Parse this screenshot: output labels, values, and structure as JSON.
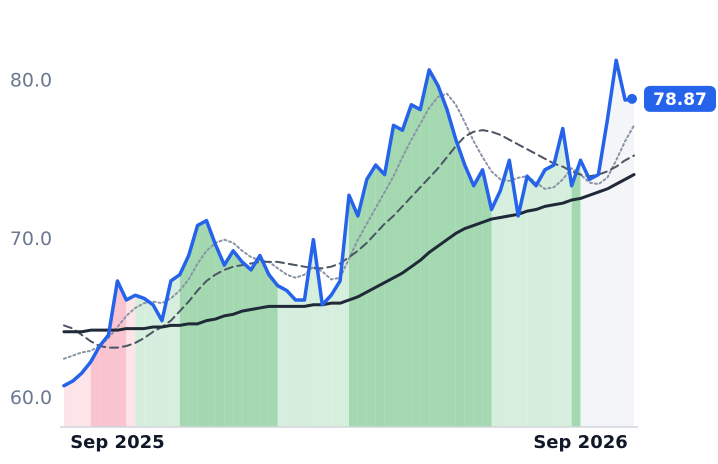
{
  "chart_data": {
    "type": "line",
    "categories": [
      null,
      null,
      null,
      null,
      null,
      null,
      "Sep 2025",
      null,
      null,
      null,
      null,
      null,
      null,
      null,
      null,
      null,
      null,
      null,
      null,
      null,
      null,
      null,
      null,
      null,
      null,
      null,
      null,
      null,
      null,
      null,
      null,
      null,
      null,
      null,
      null,
      null,
      null,
      null,
      null,
      null,
      null,
      null,
      null,
      null,
      null,
      null,
      null,
      null,
      null,
      null,
      null,
      null,
      null,
      null,
      null,
      null,
      null,
      null,
      "Sep 2026",
      null,
      null,
      null,
      null,
      null,
      null
    ],
    "ylim": [
      58.2,
      85.1
    ],
    "yticks": [
      {
        "value": 60,
        "label": "60.0"
      },
      {
        "value": 70,
        "label": "70.0"
      },
      {
        "value": 80,
        "label": "80.0"
      }
    ],
    "grid": false,
    "series": [
      {
        "color": "#2563eb",
        "values": [
          60.8,
          61.1,
          61.6,
          62.3,
          63.3,
          64.0,
          67.4,
          66.2,
          66.5,
          66.3,
          65.9,
          64.9,
          67.4,
          67.8,
          69.0,
          70.9,
          71.2,
          69.7,
          68.4,
          69.3,
          68.6,
          68.1,
          69.0,
          67.8,
          67.1,
          66.8,
          66.2,
          66.2,
          70.0,
          65.9,
          66.5,
          67.4,
          72.8,
          71.5,
          73.8,
          74.7,
          74.1,
          77.2,
          76.9,
          78.5,
          78.2,
          80.7,
          79.7,
          78.2,
          76.3,
          74.7,
          73.4,
          74.4,
          71.9,
          73.1,
          75.0,
          71.5,
          74.0,
          73.4,
          74.4,
          74.7,
          77.0,
          73.4,
          75.0,
          73.8,
          74.1,
          77.5,
          81.3,
          78.8,
          78.87
        ],
        "value_labels": [
          null,
          null,
          null,
          null,
          null,
          null,
          null,
          null,
          null,
          null,
          null,
          null,
          null,
          null,
          null,
          null,
          null,
          null,
          null,
          null,
          null,
          null,
          null,
          null,
          null,
          null,
          null,
          null,
          null,
          null,
          null,
          null,
          null,
          null,
          null,
          null,
          null,
          null,
          null,
          null,
          null,
          null,
          null,
          null,
          null,
          null,
          null,
          null,
          null,
          null,
          null,
          null,
          null,
          null,
          null,
          null,
          null,
          null,
          null,
          null,
          null,
          null,
          null,
          null,
          "78.87"
        ],
        "fill_colors": [
          "#fde4e8",
          "#fde4e8",
          "#fde4e8",
          "#f9c4cf",
          "#f9c4cf",
          "#f9c4cf",
          "#f9c4cf",
          "#fde4e8",
          "#d6eedd",
          "#d6eedd",
          "#d6eedd",
          "#d6eedd",
          "#d6eedd",
          "#a3d8b1",
          "#a3d8b1",
          "#a3d8b1",
          "#a3d8b1",
          "#a3d8b1",
          "#a3d8b1",
          "#a3d8b1",
          "#a3d8b1",
          "#a3d8b1",
          "#a3d8b1",
          "#a3d8b1",
          "#d6eedd",
          "#d6eedd",
          "#d6eedd",
          "#d6eedd",
          "#d6eedd",
          "#d6eedd",
          "#d6eedd",
          "#d6eedd",
          "#a3d8b1",
          "#a3d8b1",
          "#a3d8b1",
          "#a3d8b1",
          "#a3d8b1",
          "#a3d8b1",
          "#a3d8b1",
          "#a3d8b1",
          "#a3d8b1",
          "#a3d8b1",
          "#a3d8b1",
          "#a3d8b1",
          "#a3d8b1",
          "#a3d8b1",
          "#a3d8b1",
          "#a3d8b1",
          "#d6eedd",
          "#d6eedd",
          "#d6eedd",
          "#d6eedd",
          "#d6eedd",
          "#d6eedd",
          "#d6eedd",
          "#d6eedd",
          "#d6eedd",
          "#a3d8b1",
          "#f4f5f8",
          "#f4f5f8",
          "#f4f5f8",
          "#f4f5f8",
          "#f4f5f8",
          "#f4f5f8",
          "#f4f5f8"
        ]
      },
      {
        "color": "#8a94a6",
        "dash": "2 3",
        "values": [
          62.5,
          62.7,
          62.9,
          63.0,
          63.3,
          63.8,
          64.5,
          65.2,
          65.7,
          66.0,
          66.1,
          66.0,
          66.3,
          66.8,
          67.5,
          68.5,
          69.3,
          69.8,
          70.0,
          69.8,
          69.3,
          68.9,
          68.7,
          68.6,
          68.2,
          67.8,
          67.6,
          67.8,
          68.3,
          68.0,
          67.5,
          67.6,
          68.8,
          70.0,
          71.0,
          72.0,
          73.0,
          74.0,
          75.2,
          76.3,
          77.3,
          78.3,
          79.0,
          79.2,
          78.5,
          77.4,
          76.2,
          75.2,
          74.3,
          73.8,
          73.7,
          73.9,
          74.0,
          73.6,
          73.2,
          73.3,
          73.8,
          74.5,
          74.1,
          73.6,
          73.5,
          73.9,
          75.0,
          76.2,
          77.2
        ]
      },
      {
        "color": "#4b5563",
        "dash": "8 5",
        "values": [
          64.6,
          64.4,
          64.0,
          63.6,
          63.3,
          63.2,
          63.2,
          63.3,
          63.5,
          63.8,
          64.2,
          64.5,
          64.9,
          65.5,
          66.1,
          66.8,
          67.4,
          67.8,
          68.1,
          68.3,
          68.4,
          68.5,
          68.6,
          68.6,
          68.6,
          68.5,
          68.4,
          68.3,
          68.2,
          68.2,
          68.3,
          68.5,
          68.9,
          69.3,
          69.8,
          70.4,
          71.0,
          71.5,
          72.1,
          72.7,
          73.3,
          73.9,
          74.5,
          75.2,
          75.9,
          76.5,
          76.8,
          76.9,
          76.8,
          76.6,
          76.3,
          76.0,
          75.7,
          75.4,
          75.1,
          74.8,
          74.6,
          74.3,
          74.1,
          74.0,
          74.1,
          74.3,
          74.6,
          75.0,
          75.3
        ]
      },
      {
        "color": "#1f2937",
        "values": [
          64.2,
          64.2,
          64.2,
          64.3,
          64.3,
          64.3,
          64.3,
          64.4,
          64.4,
          64.4,
          64.5,
          64.5,
          64.6,
          64.6,
          64.7,
          64.7,
          64.9,
          65.0,
          65.2,
          65.3,
          65.5,
          65.6,
          65.7,
          65.8,
          65.8,
          65.8,
          65.8,
          65.8,
          65.9,
          65.9,
          66.0,
          66.0,
          66.2,
          66.4,
          66.7,
          67.0,
          67.3,
          67.6,
          67.9,
          68.3,
          68.7,
          69.2,
          69.6,
          70.0,
          70.4,
          70.7,
          70.9,
          71.1,
          71.3,
          71.4,
          71.5,
          71.6,
          71.8,
          71.9,
          72.1,
          72.2,
          72.3,
          72.5,
          72.6,
          72.8,
          73.0,
          73.2,
          73.5,
          73.8,
          74.1
        ]
      }
    ]
  }
}
